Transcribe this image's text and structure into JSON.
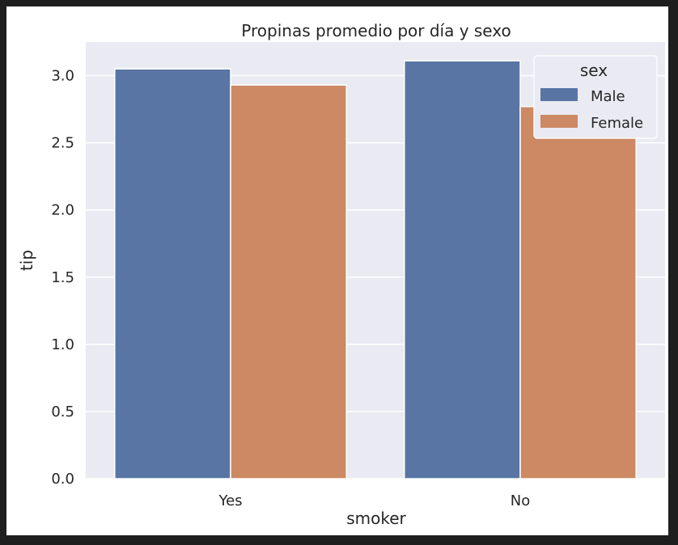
{
  "chart_data": {
    "type": "bar",
    "title": "Propinas promedio por día y sexo",
    "xlabel": "smoker",
    "ylabel": "tip",
    "categories": [
      "Yes",
      "No"
    ],
    "series": [
      {
        "name": "Male",
        "values": [
          3.05,
          3.11
        ],
        "color": "#5875a4"
      },
      {
        "name": "Female",
        "values": [
          2.93,
          2.77
        ],
        "color": "#cc8963"
      }
    ],
    "ylim": [
      0,
      3.25
    ],
    "yticks": [
      "0.0",
      "0.5",
      "1.0",
      "1.5",
      "2.0",
      "2.5",
      "3.0"
    ],
    "legend": {
      "title": "sex",
      "placement": "top-right"
    },
    "grid": true,
    "background": "#eaeaf2"
  }
}
